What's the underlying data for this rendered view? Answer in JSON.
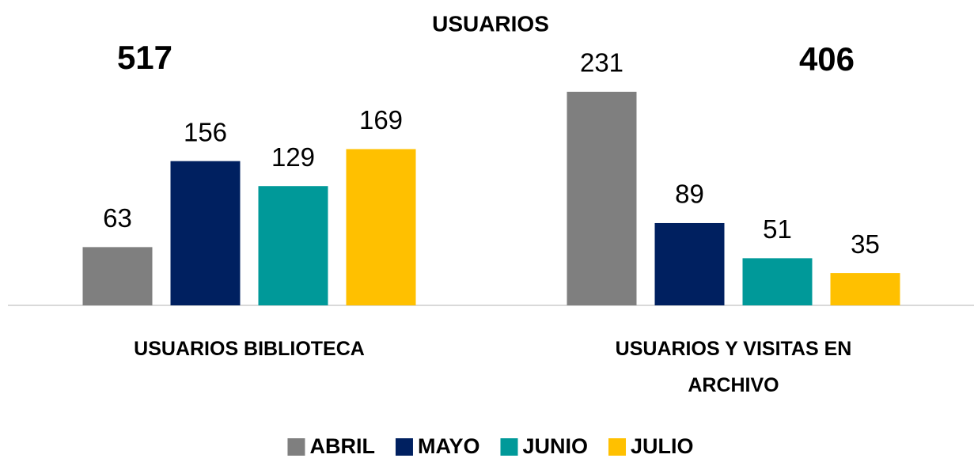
{
  "chart_data": {
    "type": "bar",
    "title": "USUARIOS",
    "annotations": [
      "517",
      "406"
    ],
    "categories": [
      "USUARIOS BIBLIOTECA",
      "USUARIOS Y VISITAS EN ARCHIVO"
    ],
    "series": [
      {
        "name": "ABRIL",
        "color": "#7f7f7f",
        "values": [
          63,
          231
        ]
      },
      {
        "name": "MAYO",
        "color": "#002060",
        "values": [
          156,
          89
        ]
      },
      {
        "name": "JUNIO",
        "color": "#009999",
        "values": [
          129,
          51
        ]
      },
      {
        "name": "JULIO",
        "color": "#ffc000",
        "values": [
          169,
          35
        ]
      }
    ],
    "legend": "bottom"
  }
}
